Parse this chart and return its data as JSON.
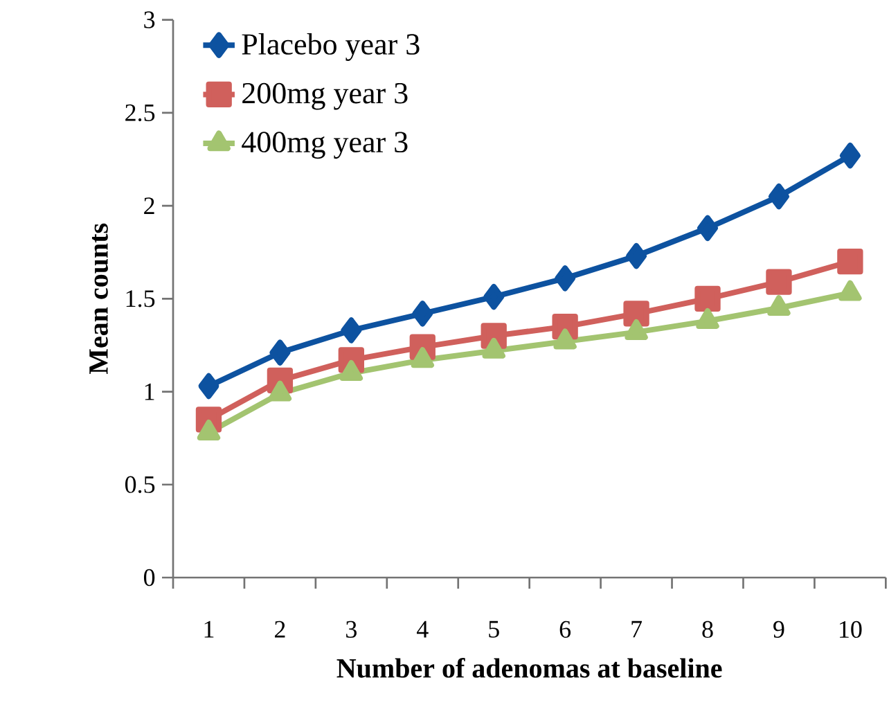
{
  "chart_data": {
    "type": "line",
    "xlabel": "Number of adenomas at baseline",
    "ylabel": "Mean counts",
    "categories": [
      "1",
      "2",
      "3",
      "4",
      "5",
      "6",
      "7",
      "8",
      "9",
      "10"
    ],
    "series": [
      {
        "name": "Placebo year 3",
        "color": "#0d52a0",
        "marker": "diamond",
        "values": [
          1.03,
          1.21,
          1.33,
          1.42,
          1.51,
          1.61,
          1.73,
          1.88,
          2.05,
          2.27
        ]
      },
      {
        "name": "200mg year 3",
        "color": "#d0605c",
        "marker": "square",
        "values": [
          0.85,
          1.06,
          1.17,
          1.24,
          1.3,
          1.35,
          1.42,
          1.5,
          1.59,
          1.7
        ]
      },
      {
        "name": "400mg year 3",
        "color": "#a3c470",
        "marker": "triangle",
        "values": [
          0.78,
          0.99,
          1.1,
          1.17,
          1.22,
          1.27,
          1.32,
          1.38,
          1.45,
          1.53
        ]
      }
    ],
    "ylim": [
      0,
      3
    ],
    "yticks": [
      0,
      0.5,
      1,
      1.5,
      2,
      2.5,
      3
    ],
    "grid": false,
    "legend": "top left",
    "line_style": "solid"
  }
}
